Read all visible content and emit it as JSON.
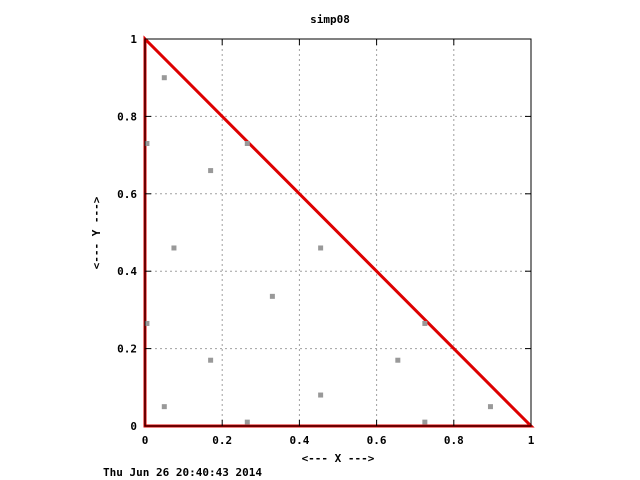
{
  "chart_data": {
    "type": "scatter",
    "title": "simp08",
    "xlabel": "<--- X --->",
    "ylabel": "<--- Y --->",
    "xlim": [
      0,
      1
    ],
    "ylim": [
      0,
      1
    ],
    "xticks": [
      0,
      0.2,
      0.4,
      0.6,
      0.8,
      1
    ],
    "yticks": [
      0,
      0.2,
      0.4,
      0.6,
      0.8,
      1
    ],
    "xtick_labels": [
      "0",
      "0.2",
      "0.4",
      "0.6",
      "0.8",
      "1"
    ],
    "ytick_labels": [
      "0",
      "0.2",
      "0.4",
      "0.6",
      "0.8",
      "1"
    ],
    "grid": true,
    "timestamp": "Thu Jun 26 20:40:43 2014",
    "points_color": "#999999",
    "points": [
      {
        "x": 0.05,
        "y": 0.9
      },
      {
        "x": 0.005,
        "y": 0.73
      },
      {
        "x": 0.265,
        "y": 0.73
      },
      {
        "x": 0.17,
        "y": 0.66
      },
      {
        "x": 0.075,
        "y": 0.46
      },
      {
        "x": 0.455,
        "y": 0.46
      },
      {
        "x": 0.33,
        "y": 0.335
      },
      {
        "x": 0.005,
        "y": 0.265
      },
      {
        "x": 0.725,
        "y": 0.265
      },
      {
        "x": 0.17,
        "y": 0.17
      },
      {
        "x": 0.655,
        "y": 0.17
      },
      {
        "x": 0.455,
        "y": 0.08
      },
      {
        "x": 0.05,
        "y": 0.05
      },
      {
        "x": 0.895,
        "y": 0.05
      },
      {
        "x": 0.265,
        "y": 0.01
      },
      {
        "x": 0.725,
        "y": 0.01
      }
    ],
    "triangle": {
      "color": "#dd0000",
      "vertices": [
        {
          "x": 0,
          "y": 0
        },
        {
          "x": 1,
          "y": 0
        },
        {
          "x": 0,
          "y": 1
        }
      ]
    }
  }
}
